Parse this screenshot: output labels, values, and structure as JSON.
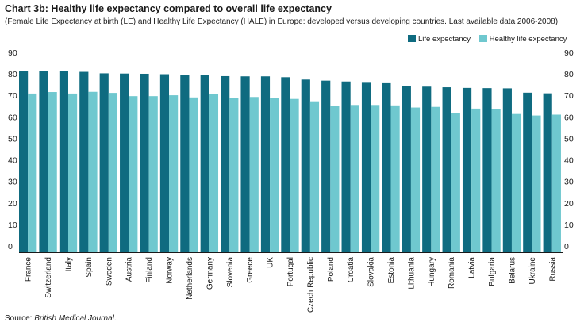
{
  "chart_data": {
    "type": "bar",
    "title": "Chart 3b: Healthy life expectancy compared to overall life expectancy",
    "subtitle": "(Female Life Expectancy at birth (LE) and Healthy Life Expectancy (HALE) in Europe: developed versus developing countries. Last available data 2006-2008)",
    "xlabel": "",
    "ylabel": "",
    "ylim": [
      0,
      90
    ],
    "yticks": [
      0,
      10,
      20,
      30,
      40,
      50,
      60,
      70,
      80,
      90
    ],
    "grid": false,
    "legend_position": "top-right",
    "categories": [
      "France",
      "Switzerland",
      "Italy",
      "Spain",
      "Sweden",
      "Austria",
      "Finland",
      "Norway",
      "Netherlands",
      "Germany",
      "Slovenia",
      "Greece",
      "UK",
      "Portugal",
      "Czech Republic",
      "Poland",
      "Croatia",
      "Slovakia",
      "Estonia",
      "Lithuania",
      "Hungary",
      "Romania",
      "Latvia",
      "Bulgaria",
      "Belarus",
      "Ukraine",
      "Russia"
    ],
    "series": [
      {
        "name": "Life expectancy",
        "color": "#0f6b80",
        "values": [
          84.3,
          84.2,
          84.1,
          83.9,
          83.2,
          83.1,
          83.0,
          82.8,
          82.6,
          82.3,
          81.9,
          81.8,
          81.8,
          81.4,
          80.3,
          79.8,
          79.4,
          78.8,
          78.6,
          77.3,
          77.0,
          76.7,
          76.4,
          76.3,
          76.2,
          74.2,
          73.9
        ]
      },
      {
        "name": "Healthy life expectancy",
        "color": "#6fc8cf",
        "values": [
          73.8,
          74.5,
          73.8,
          74.6,
          74.1,
          72.6,
          72.6,
          73.0,
          72.0,
          73.6,
          71.7,
          72.2,
          71.8,
          71.3,
          70.2,
          68.0,
          68.5,
          68.5,
          68.3,
          67.3,
          67.6,
          64.6,
          66.8,
          66.5,
          64.3,
          63.6,
          64.0
        ]
      }
    ]
  },
  "source": {
    "prefix": "Source: ",
    "name": "British Medical Journal",
    "suffix": "."
  }
}
